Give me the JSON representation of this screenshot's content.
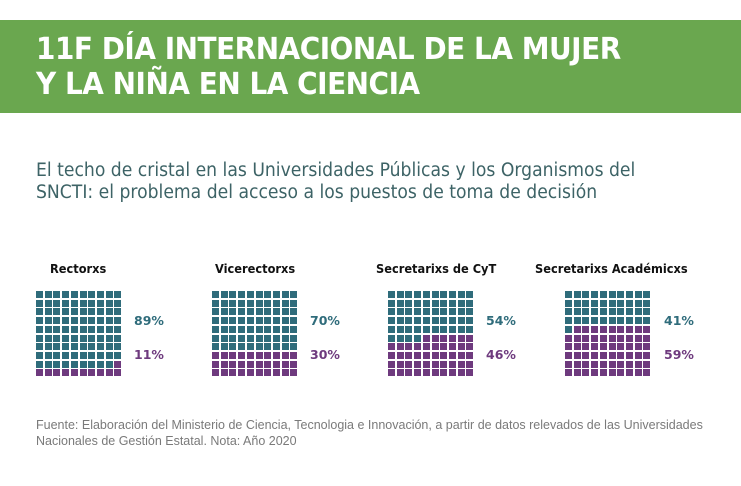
{
  "header": {
    "title_line1": "11F DÍA INTERNACIONAL DE LA MUJER",
    "title_line2": "Y LA NIÑA EN LA CIENCIA"
  },
  "subtitle": {
    "line1": "El techo de cristal en las Universidades Públicas y los Organismos del",
    "line2": "SNCTI: el problema del acceso a los puestos de toma de decisión"
  },
  "colors": {
    "banner": "#6aa74f",
    "men": "#2f6c7b",
    "women": "#6e3a7e"
  },
  "chart_data": {
    "type": "waffle",
    "grid": "10x10",
    "title": "El techo de cristal en las Universidades Públicas y los Organismos del SNCTI: el problema del acceso a los puestos de toma de decisión",
    "series": [
      "teal",
      "purple"
    ],
    "panels": [
      {
        "label": "Rectorxs",
        "teal_pct": 89,
        "purple_pct": 11,
        "teal_label": "89%",
        "purple_label": "11%"
      },
      {
        "label": "Vicerectorxs",
        "teal_pct": 70,
        "purple_pct": 30,
        "teal_label": "70%",
        "purple_label": "30%"
      },
      {
        "label": "Secretarixs de CyT",
        "teal_pct": 54,
        "purple_pct": 46,
        "teal_label": "54%",
        "purple_label": "46%"
      },
      {
        "label": "Secretarixs Académicxs",
        "teal_pct": 41,
        "purple_pct": 59,
        "teal_label": "41%",
        "purple_label": "59%"
      }
    ]
  },
  "footer": {
    "line1": "Fuente: Elaboración del Ministerio de Ciencia, Tecnologia e Innovación,  a partir de datos relevados de las Universidades",
    "line2": "Nacionales de Gestión Estatal. Nota: Año 2020"
  }
}
